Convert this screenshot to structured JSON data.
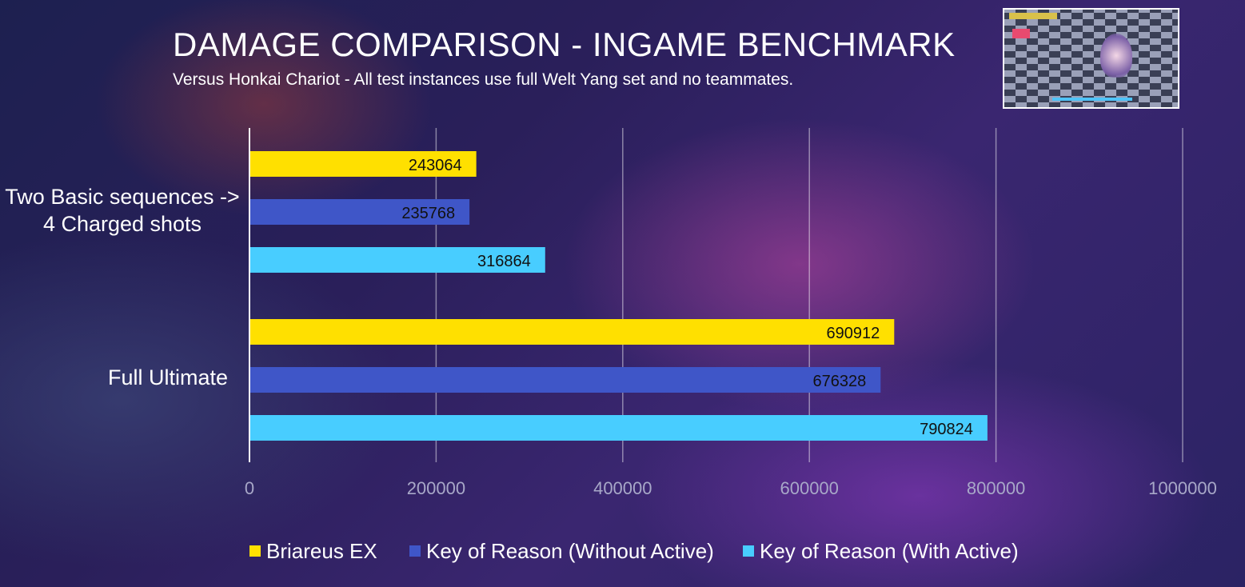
{
  "chart_data": {
    "type": "bar",
    "orientation": "horizontal",
    "title": "DAMAGE COMPARISON - INGAME BENCHMARK",
    "subtitle": "Versus Honkai Chariot - All test instances use full Welt Yang set and no teammates.",
    "categories": [
      "Two Basic sequences -> 4 Charged shots",
      "Full Ultimate"
    ],
    "category_lines": [
      [
        "Two Basic sequences ->",
        "4 Charged shots"
      ],
      [
        "Full Ultimate"
      ]
    ],
    "series": [
      {
        "name": "Briareus EX",
        "color": "#ffe000",
        "values": [
          243064,
          690912
        ]
      },
      {
        "name": "Key of Reason (Without Active)",
        "color": "#3f56c8",
        "values": [
          235768,
          676328
        ]
      },
      {
        "name": "Key of Reason (With Active)",
        "color": "#48cdff",
        "values": [
          316864,
          790824
        ]
      }
    ],
    "xlim": [
      0,
      1000000
    ],
    "xticks": [
      "0",
      "200000",
      "400000",
      "600000",
      "800000",
      "1000000"
    ],
    "grid": true,
    "legend_position": "bottom"
  }
}
